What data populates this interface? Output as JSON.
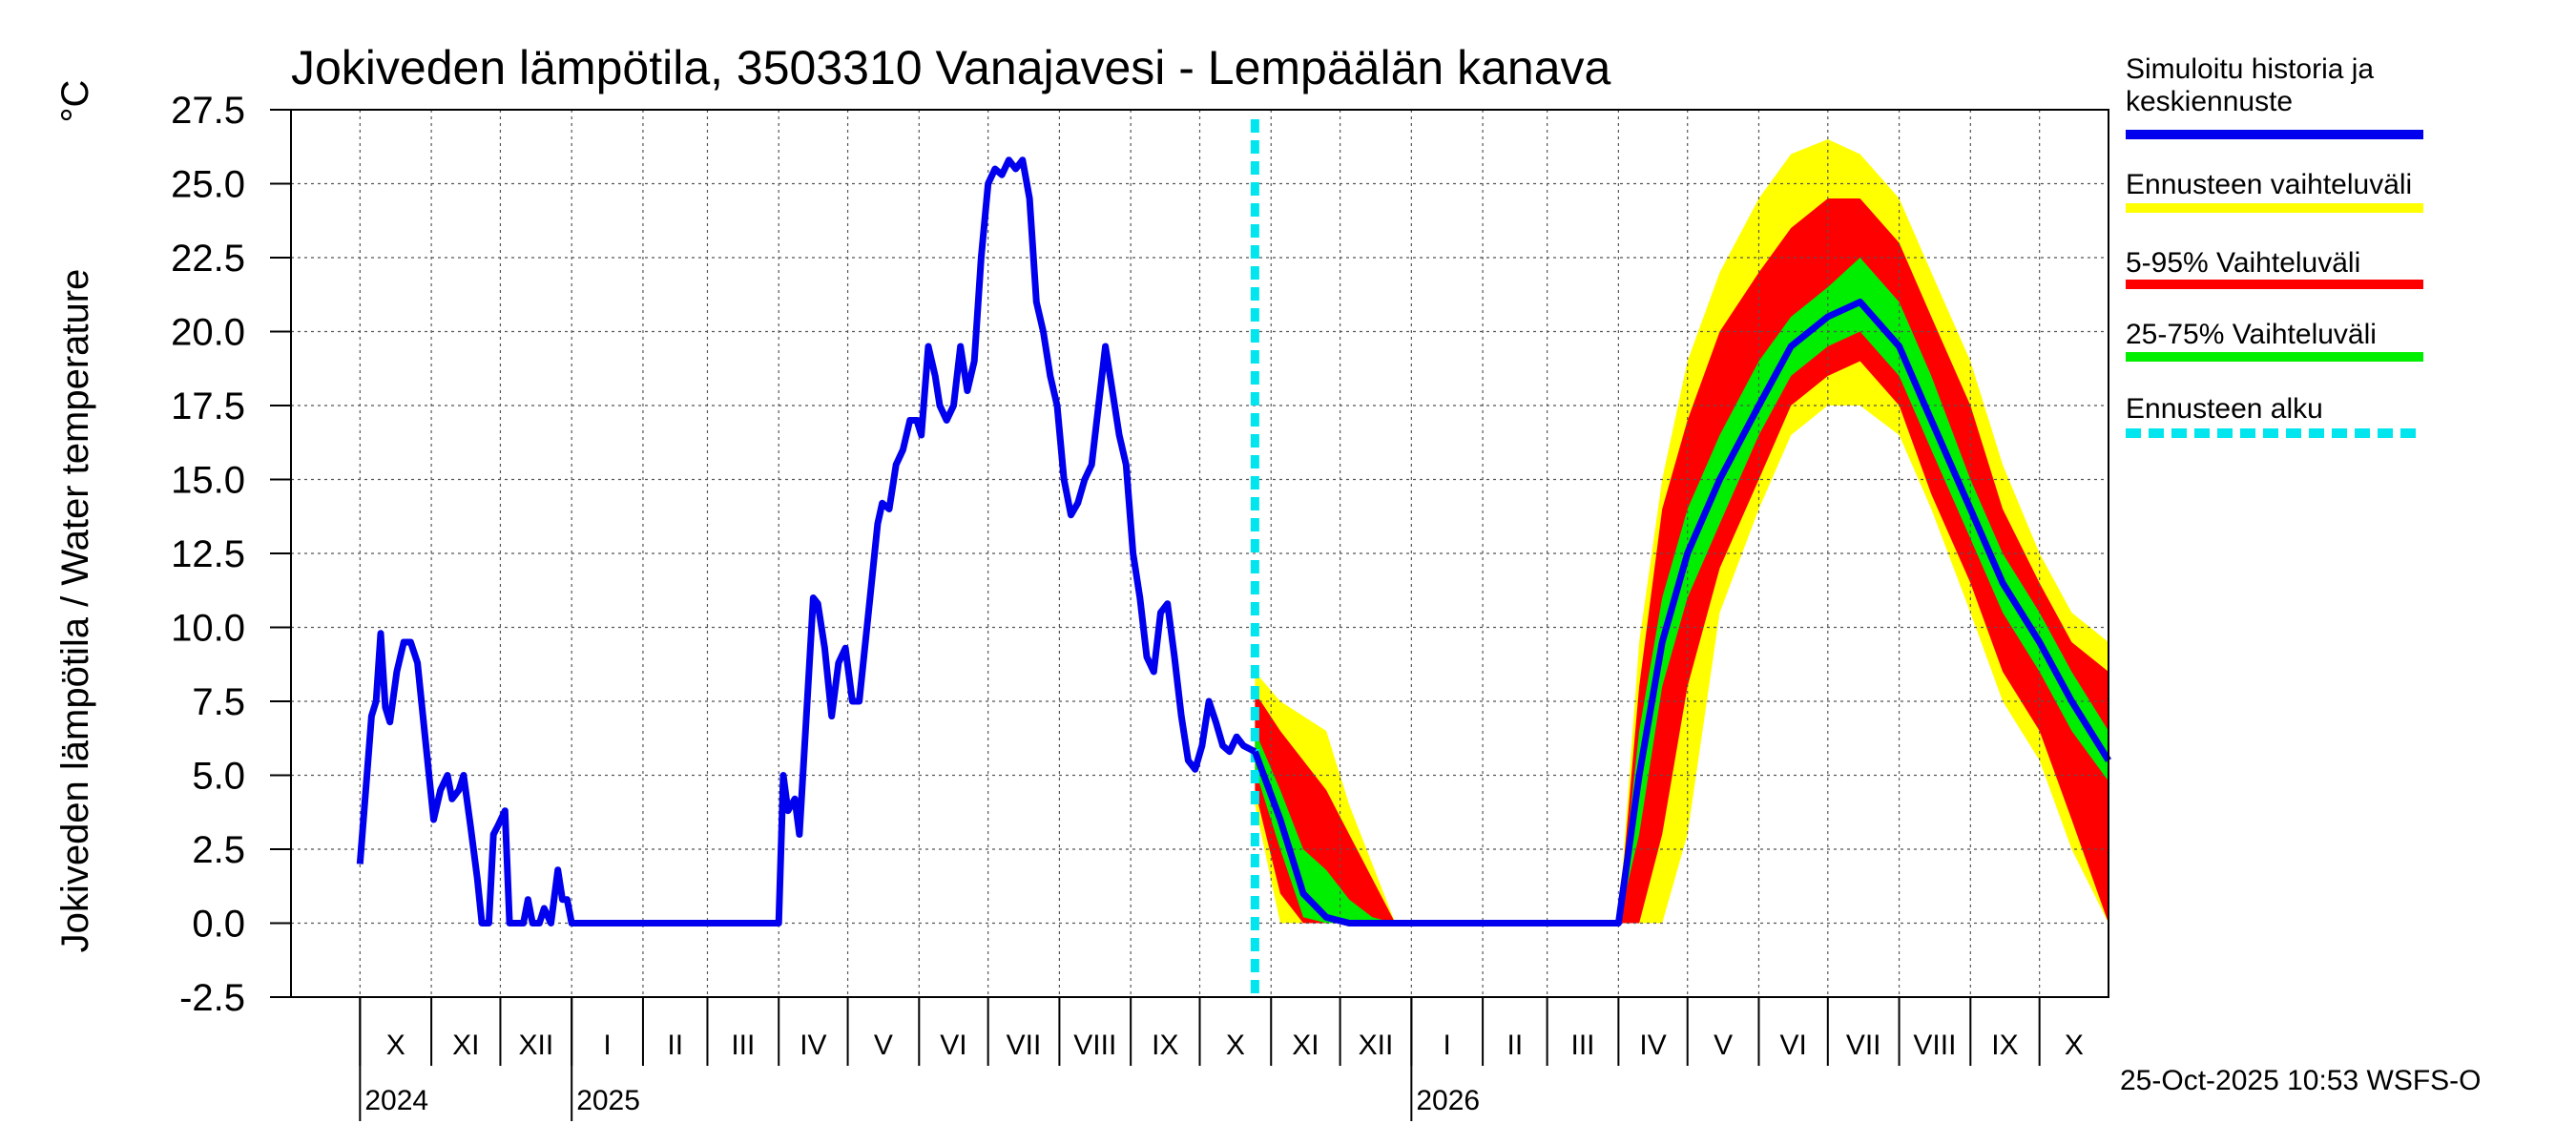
{
  "chart_data": {
    "type": "line",
    "title": "Jokiveden lämpötila, 3503310 Vanajavesi - Lempäälän kanava",
    "ylabel": "Jokiveden lämpötila / Water temperature",
    "yunit": "°C",
    "ylim": [
      -2.5,
      27.5
    ],
    "yticks": [
      "27.5",
      "25.0",
      "22.5",
      "20.0",
      "17.5",
      "15.0",
      "12.5",
      "10.0",
      "7.5",
      "5.0",
      "2.5",
      "0.0",
      "-2.5"
    ],
    "grid": true,
    "x_start": "2024-09-01",
    "x_end": "2026-10-31",
    "forecast_start": "2025-10-25",
    "months": [
      {
        "label": "X",
        "date": "2024-10-01"
      },
      {
        "label": "XI",
        "date": "2024-11-01"
      },
      {
        "label": "XII",
        "date": "2024-12-01"
      },
      {
        "label": "I",
        "date": "2025-01-01"
      },
      {
        "label": "II",
        "date": "2025-02-01"
      },
      {
        "label": "III",
        "date": "2025-03-01"
      },
      {
        "label": "IV",
        "date": "2025-04-01"
      },
      {
        "label": "V",
        "date": "2025-05-01"
      },
      {
        "label": "VI",
        "date": "2025-06-01"
      },
      {
        "label": "VII",
        "date": "2025-07-01"
      },
      {
        "label": "VIII",
        "date": "2025-08-01"
      },
      {
        "label": "IX",
        "date": "2025-09-01"
      },
      {
        "label": "X",
        "date": "2025-10-01"
      },
      {
        "label": "XI",
        "date": "2025-11-01"
      },
      {
        "label": "XII",
        "date": "2025-12-01"
      },
      {
        "label": "I",
        "date": "2026-01-01"
      },
      {
        "label": "II",
        "date": "2026-02-01"
      },
      {
        "label": "III",
        "date": "2026-03-01"
      },
      {
        "label": "IV",
        "date": "2026-04-01"
      },
      {
        "label": "V",
        "date": "2026-05-01"
      },
      {
        "label": "VI",
        "date": "2026-06-01"
      },
      {
        "label": "VII",
        "date": "2026-07-01"
      },
      {
        "label": "VIII",
        "date": "2026-08-01"
      },
      {
        "label": "IX",
        "date": "2026-09-01"
      },
      {
        "label": "X",
        "date": "2026-10-01"
      }
    ],
    "years": [
      {
        "label": "2024",
        "date": "2024-10-01"
      },
      {
        "label": "2025",
        "date": "2025-01-01"
      },
      {
        "label": "2026",
        "date": "2026-01-01"
      }
    ],
    "history": [
      [
        "2024-10-01",
        2.0
      ],
      [
        "2024-10-04",
        5.0
      ],
      [
        "2024-10-06",
        7.0
      ],
      [
        "2024-10-08",
        7.5
      ],
      [
        "2024-10-10",
        9.8
      ],
      [
        "2024-10-12",
        7.3
      ],
      [
        "2024-10-14",
        6.8
      ],
      [
        "2024-10-17",
        8.5
      ],
      [
        "2024-10-20",
        9.5
      ],
      [
        "2024-10-23",
        9.5
      ],
      [
        "2024-10-26",
        8.8
      ],
      [
        "2024-10-29",
        6.5
      ],
      [
        "2024-11-02",
        3.5
      ],
      [
        "2024-11-05",
        4.5
      ],
      [
        "2024-11-08",
        5.0
      ],
      [
        "2024-11-10",
        4.2
      ],
      [
        "2024-11-13",
        4.5
      ],
      [
        "2024-11-15",
        5.0
      ],
      [
        "2024-11-18",
        3.3
      ],
      [
        "2024-11-21",
        1.5
      ],
      [
        "2024-11-23",
        0.0
      ],
      [
        "2024-11-26",
        0.0
      ],
      [
        "2024-11-28",
        3.0
      ],
      [
        "2024-11-30",
        3.3
      ],
      [
        "2024-12-03",
        3.8
      ],
      [
        "2024-12-05",
        0.0
      ],
      [
        "2024-12-08",
        0.0
      ],
      [
        "2024-12-11",
        0.0
      ],
      [
        "2024-12-13",
        0.8
      ],
      [
        "2024-12-15",
        0.0
      ],
      [
        "2024-12-18",
        0.0
      ],
      [
        "2024-12-20",
        0.5
      ],
      [
        "2024-12-23",
        0.0
      ],
      [
        "2024-12-26",
        1.8
      ],
      [
        "2024-12-28",
        0.8
      ],
      [
        "2024-12-30",
        0.8
      ],
      [
        "2025-01-01",
        0.0
      ],
      [
        "2025-04-01",
        0.0
      ],
      [
        "2025-04-03",
        5.0
      ],
      [
        "2025-04-05",
        3.8
      ],
      [
        "2025-04-08",
        4.2
      ],
      [
        "2025-04-10",
        3.0
      ],
      [
        "2025-04-13",
        7.0
      ],
      [
        "2025-04-16",
        11.0
      ],
      [
        "2025-04-18",
        10.8
      ],
      [
        "2025-04-21",
        9.3
      ],
      [
        "2025-04-24",
        7.0
      ],
      [
        "2025-04-27",
        8.8
      ],
      [
        "2025-04-30",
        9.3
      ],
      [
        "2025-05-03",
        7.5
      ],
      [
        "2025-05-06",
        7.5
      ],
      [
        "2025-05-10",
        10.5
      ],
      [
        "2025-05-14",
        13.5
      ],
      [
        "2025-05-16",
        14.2
      ],
      [
        "2025-05-19",
        14.0
      ],
      [
        "2025-05-22",
        15.5
      ],
      [
        "2025-05-25",
        16.0
      ],
      [
        "2025-05-28",
        17.0
      ],
      [
        "2025-05-31",
        17.0
      ],
      [
        "2025-06-02",
        16.5
      ],
      [
        "2025-06-05",
        19.5
      ],
      [
        "2025-06-08",
        18.5
      ],
      [
        "2025-06-10",
        17.5
      ],
      [
        "2025-06-13",
        17.0
      ],
      [
        "2025-06-16",
        17.5
      ],
      [
        "2025-06-19",
        19.5
      ],
      [
        "2025-06-22",
        18.0
      ],
      [
        "2025-06-25",
        19.0
      ],
      [
        "2025-06-28",
        22.5
      ],
      [
        "2025-07-01",
        25.0
      ],
      [
        "2025-07-04",
        25.5
      ],
      [
        "2025-07-07",
        25.3
      ],
      [
        "2025-07-10",
        25.8
      ],
      [
        "2025-07-13",
        25.5
      ],
      [
        "2025-07-16",
        25.8
      ],
      [
        "2025-07-19",
        24.5
      ],
      [
        "2025-07-22",
        21.0
      ],
      [
        "2025-07-25",
        20.0
      ],
      [
        "2025-07-28",
        18.5
      ],
      [
        "2025-07-31",
        17.5
      ],
      [
        "2025-08-03",
        15.0
      ],
      [
        "2025-08-06",
        13.8
      ],
      [
        "2025-08-09",
        14.2
      ],
      [
        "2025-08-12",
        15.0
      ],
      [
        "2025-08-15",
        15.5
      ],
      [
        "2025-08-18",
        17.5
      ],
      [
        "2025-08-21",
        19.5
      ],
      [
        "2025-08-24",
        18.0
      ],
      [
        "2025-08-27",
        16.5
      ],
      [
        "2025-08-30",
        15.5
      ],
      [
        "2025-09-02",
        12.5
      ],
      [
        "2025-09-05",
        11.0
      ],
      [
        "2025-09-08",
        9.0
      ],
      [
        "2025-09-11",
        8.5
      ],
      [
        "2025-09-14",
        10.5
      ],
      [
        "2025-09-17",
        10.8
      ],
      [
        "2025-09-20",
        9.0
      ],
      [
        "2025-09-23",
        7.0
      ],
      [
        "2025-09-26",
        5.5
      ],
      [
        "2025-09-29",
        5.2
      ],
      [
        "2025-10-02",
        6.0
      ],
      [
        "2025-10-05",
        7.5
      ],
      [
        "2025-10-08",
        6.8
      ],
      [
        "2025-10-11",
        6.0
      ],
      [
        "2025-10-14",
        5.8
      ],
      [
        "2025-10-17",
        6.3
      ],
      [
        "2025-10-20",
        6.0
      ],
      [
        "2025-10-25",
        5.8
      ]
    ],
    "forecast": {
      "dates": [
        "2025-10-25",
        "2025-11-05",
        "2025-11-15",
        "2025-11-25",
        "2025-12-05",
        "2025-12-15",
        "2025-12-25",
        "2026-01-10",
        "2026-04-01",
        "2026-04-10",
        "2026-04-20",
        "2026-05-01",
        "2026-05-15",
        "2026-06-01",
        "2026-06-15",
        "2026-07-01",
        "2026-07-15",
        "2026-08-01",
        "2026-08-15",
        "2026-09-01",
        "2026-09-15",
        "2026-10-01",
        "2026-10-15",
        "2026-10-31"
      ],
      "median": [
        5.8,
        3.5,
        1.0,
        0.2,
        0.0,
        0.0,
        0.0,
        0.0,
        0.0,
        5.0,
        9.5,
        12.5,
        15.0,
        17.5,
        19.5,
        20.5,
        21.0,
        19.5,
        17.0,
        14.0,
        11.5,
        9.5,
        7.5,
        5.5
      ],
      "p25": [
        5.2,
        2.5,
        0.2,
        0.0,
        0.0,
        0.0,
        0.0,
        0.0,
        0.0,
        3.0,
        8.0,
        11.0,
        13.5,
        16.5,
        18.5,
        19.5,
        20.0,
        18.5,
        16.0,
        13.0,
        10.5,
        8.5,
        6.5,
        4.8
      ],
      "p75": [
        6.5,
        4.5,
        2.5,
        1.8,
        0.8,
        0.2,
        0.0,
        0.0,
        0.0,
        6.5,
        11.0,
        14.0,
        16.5,
        19.0,
        20.5,
        21.5,
        22.5,
        21.0,
        18.5,
        15.0,
        12.5,
        10.5,
        8.5,
        6.5
      ],
      "p5": [
        4.5,
        1.0,
        0.0,
        0.0,
        0.0,
        0.0,
        0.0,
        0.0,
        0.0,
        0.0,
        3.0,
        8.0,
        12.0,
        15.0,
        17.5,
        18.5,
        19.0,
        17.5,
        14.5,
        11.5,
        8.5,
        6.5,
        3.5,
        0.0
      ],
      "p95": [
        7.8,
        6.5,
        5.5,
        4.5,
        3.0,
        1.5,
        0.0,
        0.0,
        0.0,
        8.0,
        14.0,
        17.0,
        20.0,
        22.0,
        23.5,
        24.5,
        24.5,
        23.0,
        20.5,
        17.5,
        14.0,
        11.5,
        9.5,
        8.5
      ],
      "min": [
        4.0,
        0.0,
        0.0,
        0.0,
        0.0,
        0.0,
        0.0,
        0.0,
        0.0,
        0.0,
        0.0,
        3.0,
        10.5,
        14.0,
        16.5,
        17.5,
        17.5,
        16.5,
        14.0,
        10.5,
        7.5,
        5.5,
        2.5,
        0.0
      ],
      "max": [
        8.5,
        7.5,
        7.0,
        6.5,
        4.0,
        2.0,
        0.0,
        0.0,
        0.0,
        9.5,
        15.0,
        19.0,
        22.0,
        24.5,
        26.0,
        26.5,
        26.0,
        24.5,
        22.0,
        19.0,
        15.5,
        12.5,
        10.5,
        9.5
      ]
    },
    "colors": {
      "history": "#0000ee",
      "range": "#ffff00",
      "p5_95": "#ff0000",
      "p25_75": "#00ee00",
      "forecast_start": "#00e5ee",
      "grid": "#555555"
    },
    "legend": [
      {
        "label_line1": "Simuloitu historia ja",
        "label_line2": "keskiennuste",
        "color": "#0000ee",
        "style": "solid"
      },
      {
        "label_line1": "Ennusteen vaihteluväli",
        "label_line2": "",
        "color": "#ffff00",
        "style": "solid"
      },
      {
        "label_line1": "5-95% Vaihteluväli",
        "label_line2": "",
        "color": "#ff0000",
        "style": "solid"
      },
      {
        "label_line1": "25-75% Vaihteluväli",
        "label_line2": "",
        "color": "#00ee00",
        "style": "solid"
      },
      {
        "label_line1": "Ennusteen alku",
        "label_line2": "",
        "color": "#00e5ee",
        "style": "dashed"
      }
    ],
    "legend_position": "right",
    "footer": "25-Oct-2025 10:53 WSFS-O"
  }
}
